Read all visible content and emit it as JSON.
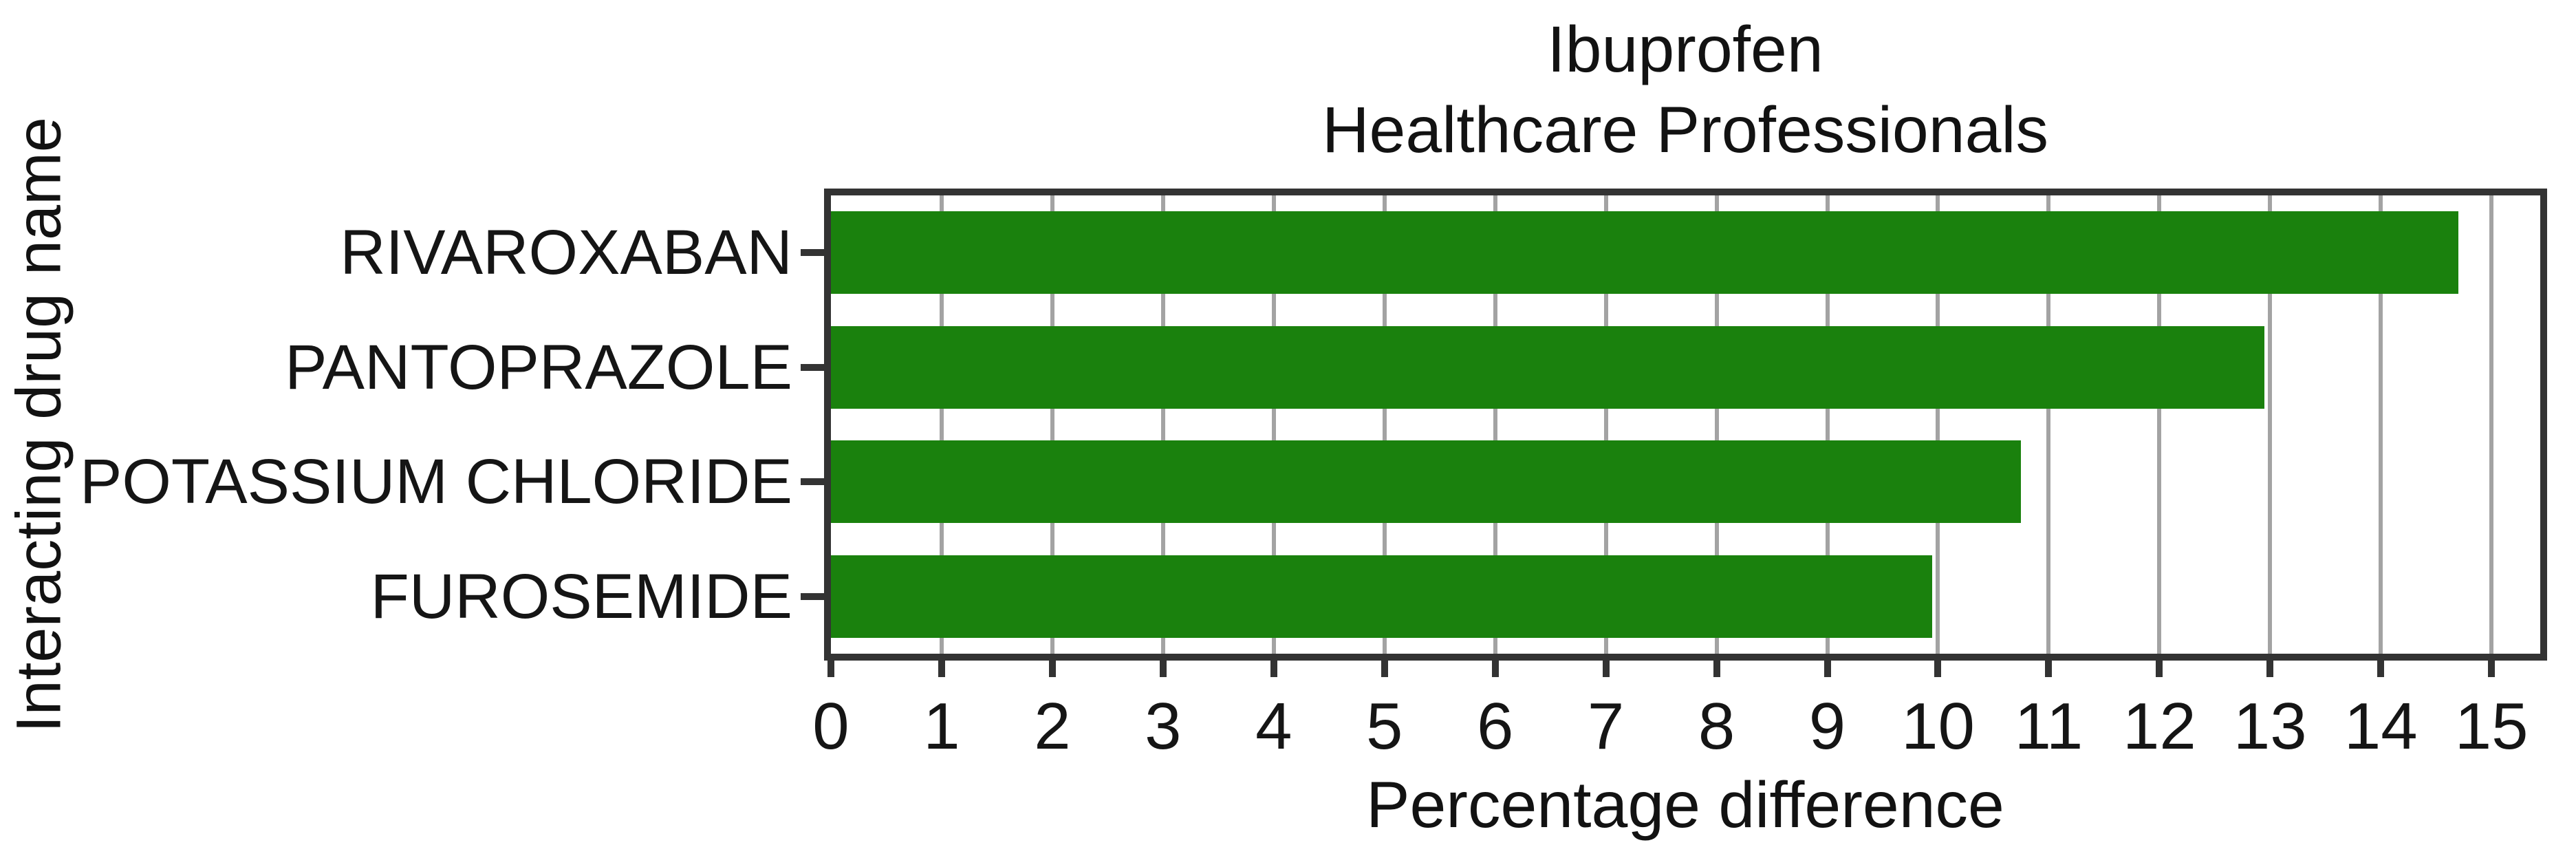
{
  "figure": {
    "title_line1": "Ibuprofen",
    "title_line2": "Healthcare Professionals",
    "xlabel": "Percentage difference",
    "ylabel": "Interacting drug name"
  },
  "chart_data": {
    "type": "bar",
    "orientation": "horizontal",
    "title": "Ibuprofen\nHealthcare Professionals",
    "xlabel": "Percentage difference",
    "ylabel": "Interacting drug name",
    "categories": [
      "RIVAROXABAN",
      "PANTOPRAZOLE",
      "POTASSIUM CHLORIDE",
      "FUROSEMIDE"
    ],
    "values": [
      14.7,
      12.95,
      10.75,
      9.95
    ],
    "x_ticks": [
      0,
      1,
      2,
      3,
      4,
      5,
      6,
      7,
      8,
      9,
      10,
      11,
      12,
      13,
      14,
      15
    ],
    "xlim": [
      0,
      15.44
    ],
    "grid": "vertical gridlines at every x tick, drawn behind bars",
    "legend": "none",
    "colors": {
      "bar": "#1a810d",
      "grid": "#a3a3a3",
      "spine": "#333333",
      "text": "#151515",
      "background": "#ffffff"
    }
  }
}
